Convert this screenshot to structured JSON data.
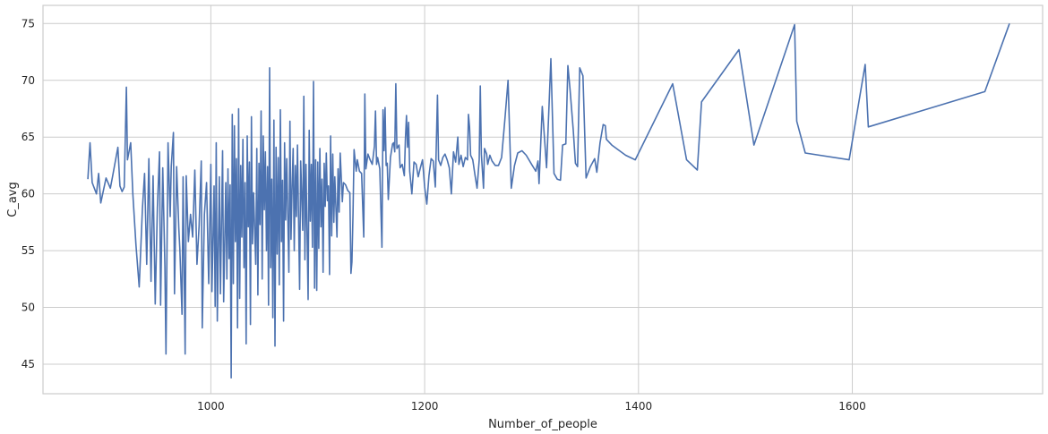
{
  "chart_data": {
    "type": "line",
    "title": "",
    "xlabel": "Number_of_people",
    "ylabel": "C_avg",
    "xlim": [
      843,
      1778
    ],
    "ylim": [
      42.4,
      76.6
    ],
    "xticks": [
      1000,
      1200,
      1400,
      1600
    ],
    "yticks": [
      45,
      50,
      55,
      60,
      65,
      70,
      75
    ],
    "grid": true,
    "legend": "none",
    "series": [
      {
        "color": "#4c72b0",
        "points": [
          [
            885,
            61.3
          ],
          [
            887,
            64.5
          ],
          [
            889,
            61.0
          ],
          [
            893,
            60.0
          ],
          [
            895,
            61.8
          ],
          [
            897,
            59.2
          ],
          [
            902,
            61.4
          ],
          [
            906,
            60.5
          ],
          [
            908,
            61.5
          ],
          [
            913,
            64.1
          ],
          [
            915,
            60.7
          ],
          [
            917,
            60.2
          ],
          [
            919,
            60.6
          ],
          [
            921,
            69.4
          ],
          [
            922,
            63.0
          ],
          [
            925,
            64.5
          ],
          [
            927,
            60.0
          ],
          [
            930,
            55.5
          ],
          [
            933,
            51.8
          ],
          [
            936,
            58.7
          ],
          [
            938,
            61.8
          ],
          [
            940,
            53.8
          ],
          [
            942,
            63.1
          ],
          [
            944,
            52.3
          ],
          [
            946,
            61.6
          ],
          [
            948,
            50.3
          ],
          [
            950,
            58.8
          ],
          [
            952,
            63.7
          ],
          [
            953,
            50.2
          ],
          [
            955,
            62.3
          ],
          [
            957,
            53.6
          ],
          [
            958,
            45.9
          ],
          [
            960,
            64.5
          ],
          [
            962,
            58.0
          ],
          [
            963,
            62.4
          ],
          [
            965,
            65.4
          ],
          [
            966,
            51.2
          ],
          [
            968,
            62.4
          ],
          [
            970,
            57.0
          ],
          [
            971,
            55.1
          ],
          [
            973,
            49.4
          ],
          [
            974,
            61.5
          ],
          [
            976,
            45.9
          ],
          [
            977,
            61.6
          ],
          [
            979,
            55.8
          ],
          [
            981,
            58.2
          ],
          [
            983,
            56.2
          ],
          [
            985,
            62.1
          ],
          [
            987,
            53.8
          ],
          [
            989,
            57.2
          ],
          [
            991,
            62.9
          ],
          [
            992,
            48.2
          ],
          [
            994,
            58.2
          ],
          [
            996,
            61.0
          ],
          [
            998,
            52.1
          ],
          [
            1000,
            62.6
          ],
          [
            1001,
            51.4
          ],
          [
            1003,
            60.7
          ],
          [
            1004,
            50.1
          ],
          [
            1005,
            64.5
          ],
          [
            1006,
            48.8
          ],
          [
            1008,
            61.5
          ],
          [
            1009,
            51.2
          ],
          [
            1011,
            63.8
          ],
          [
            1012,
            50.5
          ],
          [
            1014,
            61.0
          ],
          [
            1015,
            52.5
          ],
          [
            1016,
            62.2
          ],
          [
            1017,
            54.3
          ],
          [
            1018,
            60.8
          ],
          [
            1019,
            43.8
          ],
          [
            1020,
            67.0
          ],
          [
            1021,
            52.1
          ],
          [
            1022,
            66.0
          ],
          [
            1023,
            55.8
          ],
          [
            1024,
            63.1
          ],
          [
            1025,
            48.2
          ],
          [
            1026,
            67.5
          ],
          [
            1027,
            50.8
          ],
          [
            1028,
            62.5
          ],
          [
            1029,
            56.2
          ],
          [
            1030,
            64.8
          ],
          [
            1031,
            53.5
          ],
          [
            1032,
            61.0
          ],
          [
            1033,
            46.8
          ],
          [
            1034,
            65.1
          ],
          [
            1035,
            57.1
          ],
          [
            1036,
            62.8
          ],
          [
            1037,
            48.5
          ],
          [
            1038,
            66.8
          ],
          [
            1039,
            55.6
          ],
          [
            1040,
            60.1
          ],
          [
            1042,
            53.8
          ],
          [
            1043,
            64.0
          ],
          [
            1044,
            51.1
          ],
          [
            1045,
            62.7
          ],
          [
            1046,
            57.3
          ],
          [
            1047,
            67.3
          ],
          [
            1048,
            52.5
          ],
          [
            1049,
            65.1
          ],
          [
            1050,
            58.6
          ],
          [
            1051,
            63.7
          ],
          [
            1052,
            55.0
          ],
          [
            1053,
            62.4
          ],
          [
            1054,
            50.2
          ],
          [
            1055,
            71.1
          ],
          [
            1056,
            53.5
          ],
          [
            1057,
            61.3
          ],
          [
            1058,
            49.1
          ],
          [
            1059,
            66.5
          ],
          [
            1060,
            46.6
          ],
          [
            1061,
            64.1
          ],
          [
            1062,
            54.7
          ],
          [
            1063,
            63.2
          ],
          [
            1064,
            52.0
          ],
          [
            1065,
            67.4
          ],
          [
            1066,
            55.8
          ],
          [
            1067,
            61.2
          ],
          [
            1068,
            48.8
          ],
          [
            1069,
            64.5
          ],
          [
            1070,
            57.7
          ],
          [
            1071,
            63.1
          ],
          [
            1073,
            53.1
          ],
          [
            1074,
            66.4
          ],
          [
            1075,
            56.0
          ],
          [
            1076,
            60.6
          ],
          [
            1077,
            64.0
          ],
          [
            1078,
            55.0
          ],
          [
            1079,
            62.5
          ],
          [
            1080,
            58.0
          ],
          [
            1081,
            64.3
          ],
          [
            1083,
            51.6
          ],
          [
            1084,
            62.9
          ],
          [
            1086,
            56.8
          ],
          [
            1087,
            68.6
          ],
          [
            1088,
            54.2
          ],
          [
            1089,
            62.6
          ],
          [
            1091,
            50.7
          ],
          [
            1092,
            65.6
          ],
          [
            1093,
            57.6
          ],
          [
            1094,
            62.6
          ],
          [
            1095,
            55.3
          ],
          [
            1096,
            69.9
          ],
          [
            1097,
            51.7
          ],
          [
            1098,
            63.0
          ],
          [
            1099,
            51.5
          ],
          [
            1100,
            62.8
          ],
          [
            1101,
            55.2
          ],
          [
            1102,
            64.0
          ],
          [
            1103,
            57.1
          ],
          [
            1104,
            61.3
          ],
          [
            1105,
            53.1
          ],
          [
            1106,
            62.7
          ],
          [
            1107,
            58.9
          ],
          [
            1108,
            63.6
          ],
          [
            1109,
            59.4
          ],
          [
            1110,
            60.7
          ],
          [
            1111,
            52.9
          ],
          [
            1112,
            65.1
          ],
          [
            1113,
            56.3
          ],
          [
            1114,
            63.5
          ],
          [
            1115,
            57.5
          ],
          [
            1116,
            61.5
          ],
          [
            1118,
            56.2
          ],
          [
            1119,
            62.2
          ],
          [
            1120,
            58.4
          ],
          [
            1121,
            63.6
          ],
          [
            1123,
            59.3
          ],
          [
            1124,
            61.0
          ],
          [
            1126,
            60.8
          ],
          [
            1128,
            60.3
          ],
          [
            1130,
            60.1
          ],
          [
            1131,
            53.0
          ],
          [
            1132,
            54.0
          ],
          [
            1133,
            58.2
          ],
          [
            1134,
            63.9
          ],
          [
            1136,
            62.0
          ],
          [
            1137,
            63.0
          ],
          [
            1139,
            62.0
          ],
          [
            1141,
            61.8
          ],
          [
            1143,
            56.2
          ],
          [
            1144,
            68.8
          ],
          [
            1145,
            62.2
          ],
          [
            1147,
            63.5
          ],
          [
            1149,
            63.0
          ],
          [
            1151,
            62.6
          ],
          [
            1153,
            64.2
          ],
          [
            1154,
            67.3
          ],
          [
            1155,
            62.6
          ],
          [
            1156,
            63.2
          ],
          [
            1158,
            62.2
          ],
          [
            1160,
            55.3
          ],
          [
            1161,
            67.4
          ],
          [
            1162,
            63.8
          ],
          [
            1163,
            67.6
          ],
          [
            1164,
            62.5
          ],
          [
            1165,
            62.7
          ],
          [
            1166,
            59.5
          ],
          [
            1168,
            63.2
          ],
          [
            1170,
            64.4
          ],
          [
            1171,
            64.5
          ],
          [
            1172,
            63.7
          ],
          [
            1173,
            69.7
          ],
          [
            1174,
            64.0
          ],
          [
            1176,
            64.3
          ],
          [
            1177,
            62.3
          ],
          [
            1179,
            62.6
          ],
          [
            1181,
            61.6
          ],
          [
            1182,
            64.8
          ],
          [
            1183,
            66.9
          ],
          [
            1184,
            64.1
          ],
          [
            1185,
            66.3
          ],
          [
            1186,
            62.0
          ],
          [
            1188,
            60.0
          ],
          [
            1190,
            62.8
          ],
          [
            1192,
            62.6
          ],
          [
            1194,
            61.5
          ],
          [
            1196,
            62.3
          ],
          [
            1198,
            63.0
          ],
          [
            1200,
            60.6
          ],
          [
            1202,
            59.1
          ],
          [
            1204,
            61.6
          ],
          [
            1206,
            63.1
          ],
          [
            1208,
            62.9
          ],
          [
            1210,
            60.6
          ],
          [
            1212,
            68.7
          ],
          [
            1213,
            63.0
          ],
          [
            1215,
            62.5
          ],
          [
            1217,
            63.2
          ],
          [
            1219,
            63.5
          ],
          [
            1221,
            63.0
          ],
          [
            1223,
            62.3
          ],
          [
            1225,
            60.0
          ],
          [
            1227,
            63.7
          ],
          [
            1229,
            62.8
          ],
          [
            1231,
            65.0
          ],
          [
            1232,
            62.6
          ],
          [
            1234,
            63.4
          ],
          [
            1236,
            62.4
          ],
          [
            1238,
            63.2
          ],
          [
            1240,
            63.0
          ],
          [
            1241,
            67.0
          ],
          [
            1242,
            65.9
          ],
          [
            1243,
            63.4
          ],
          [
            1245,
            63.0
          ],
          [
            1247,
            61.7
          ],
          [
            1249,
            60.5
          ],
          [
            1251,
            63.0
          ],
          [
            1252,
            69.5
          ],
          [
            1253,
            63.5
          ],
          [
            1255,
            60.5
          ],
          [
            1256,
            64.0
          ],
          [
            1258,
            63.5
          ],
          [
            1259,
            62.6
          ],
          [
            1261,
            63.4
          ],
          [
            1263,
            62.9
          ],
          [
            1266,
            62.5
          ],
          [
            1269,
            62.5
          ],
          [
            1272,
            63.2
          ],
          [
            1275,
            66.5
          ],
          [
            1278,
            70.0
          ],
          [
            1281,
            60.5
          ],
          [
            1284,
            62.5
          ],
          [
            1287,
            63.6
          ],
          [
            1291,
            63.8
          ],
          [
            1295,
            63.4
          ],
          [
            1300,
            62.6
          ],
          [
            1304,
            62.0
          ],
          [
            1306,
            62.9
          ],
          [
            1307,
            60.9
          ],
          [
            1310,
            67.7
          ],
          [
            1314,
            62.3
          ],
          [
            1318,
            71.9
          ],
          [
            1321,
            61.8
          ],
          [
            1324,
            61.3
          ],
          [
            1327,
            61.2
          ],
          [
            1329,
            64.3
          ],
          [
            1332,
            64.4
          ],
          [
            1334,
            71.3
          ],
          [
            1336,
            69.2
          ],
          [
            1339,
            65.6
          ],
          [
            1341,
            62.7
          ],
          [
            1343,
            62.4
          ],
          [
            1345,
            71.1
          ],
          [
            1348,
            70.4
          ],
          [
            1351,
            61.4
          ],
          [
            1355,
            62.4
          ],
          [
            1359,
            63.1
          ],
          [
            1361,
            61.9
          ],
          [
            1364,
            64.5
          ],
          [
            1367,
            66.1
          ],
          [
            1369,
            66.0
          ],
          [
            1370,
            64.8
          ],
          [
            1375,
            64.3
          ],
          [
            1388,
            63.4
          ],
          [
            1397,
            63.0
          ],
          [
            1432,
            69.7
          ],
          [
            1445,
            63.0
          ],
          [
            1455,
            62.1
          ],
          [
            1459,
            68.1
          ],
          [
            1494,
            72.7
          ],
          [
            1508,
            64.3
          ],
          [
            1546,
            74.9
          ],
          [
            1548,
            66.4
          ],
          [
            1556,
            63.6
          ],
          [
            1597,
            63.0
          ],
          [
            1612,
            71.4
          ],
          [
            1615,
            65.9
          ],
          [
            1724,
            69.0
          ],
          [
            1747,
            75.0
          ]
        ]
      }
    ]
  }
}
